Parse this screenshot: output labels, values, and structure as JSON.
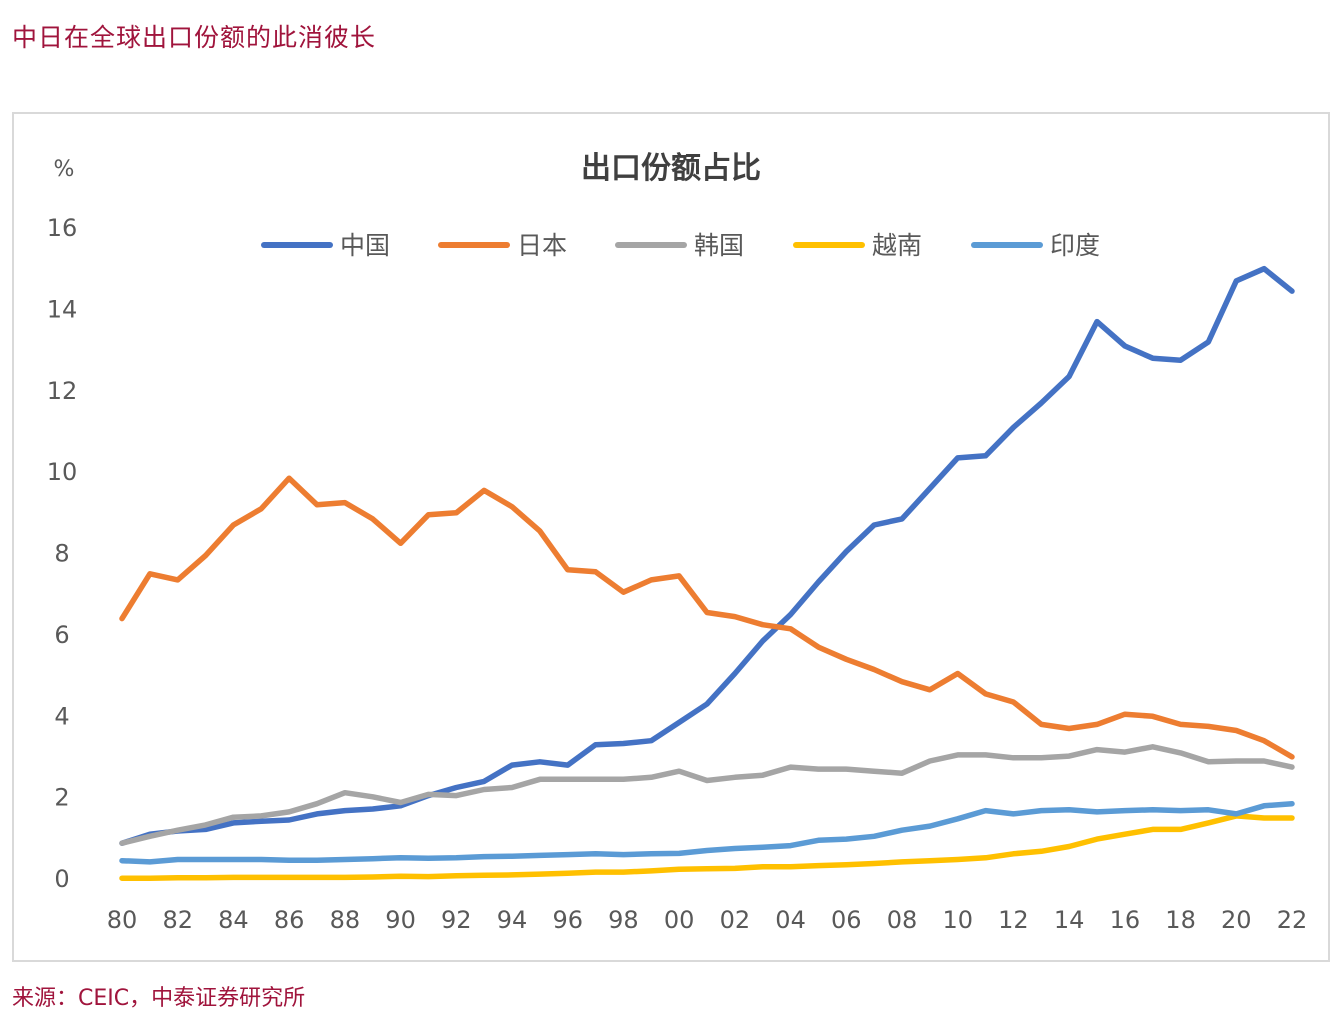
{
  "page_title": "中日在全球出口份额的此消彼长",
  "source": "来源：CEIC，中泰证券研究所",
  "colors": {
    "中国": "#4472c4",
    "日本": "#ed7d31",
    "韩国": "#a5a5a5",
    "越南": "#ffc000",
    "印度": "#5b9bd5"
  },
  "chart_data": {
    "type": "line",
    "title": "出口份额占比",
    "ylabel": "%",
    "xlabel": "",
    "ylim": [
      0,
      16
    ],
    "y_ticks": [
      "0",
      "2",
      "4",
      "6",
      "8",
      "10",
      "12",
      "14",
      "16"
    ],
    "x_tick_labels": [
      "80",
      "82",
      "84",
      "86",
      "88",
      "90",
      "92",
      "94",
      "96",
      "98",
      "00",
      "02",
      "04",
      "06",
      "08",
      "10",
      "12",
      "14",
      "16",
      "18",
      "20",
      "22"
    ],
    "grid": false,
    "legend_position": "top",
    "x": [
      "80",
      "81",
      "82",
      "83",
      "84",
      "85",
      "86",
      "87",
      "88",
      "89",
      "90",
      "91",
      "92",
      "93",
      "94",
      "95",
      "96",
      "97",
      "98",
      "99",
      "00",
      "01",
      "02",
      "03",
      "04",
      "05",
      "06",
      "07",
      "08",
      "09",
      "10",
      "11",
      "12",
      "13",
      "14",
      "15",
      "16",
      "17",
      "18",
      "19",
      "20",
      "21",
      "22"
    ],
    "series": [
      {
        "name": "中国",
        "values": [
          0.88,
          1.1,
          1.18,
          1.22,
          1.38,
          1.42,
          1.45,
          1.6,
          1.68,
          1.72,
          1.8,
          2.05,
          2.25,
          2.4,
          2.8,
          2.88,
          2.8,
          3.3,
          3.33,
          3.4,
          3.85,
          4.3,
          5.05,
          5.85,
          6.5,
          7.3,
          8.05,
          8.7,
          8.85,
          9.6,
          10.35,
          10.4,
          11.1,
          11.7,
          12.35,
          13.7,
          13.1,
          12.8,
          12.75,
          13.2,
          14.7,
          15.0,
          14.45
        ]
      },
      {
        "name": "日本",
        "values": [
          6.4,
          7.5,
          7.35,
          7.95,
          8.7,
          9.1,
          9.85,
          9.2,
          9.25,
          8.85,
          8.25,
          8.95,
          9.0,
          9.55,
          9.15,
          8.55,
          7.6,
          7.55,
          7.05,
          7.35,
          7.45,
          6.55,
          6.45,
          6.25,
          6.15,
          5.7,
          5.4,
          5.15,
          4.85,
          4.65,
          5.05,
          4.55,
          4.35,
          3.8,
          3.7,
          3.8,
          4.05,
          4.0,
          3.8,
          3.75,
          3.65,
          3.4,
          3.0
        ]
      },
      {
        "name": "韩国",
        "values": [
          0.88,
          1.05,
          1.2,
          1.33,
          1.52,
          1.55,
          1.65,
          1.85,
          2.12,
          2.02,
          1.88,
          2.08,
          2.05,
          2.2,
          2.25,
          2.45,
          2.45,
          2.45,
          2.45,
          2.5,
          2.65,
          2.42,
          2.5,
          2.55,
          2.75,
          2.7,
          2.7,
          2.65,
          2.6,
          2.9,
          3.05,
          3.05,
          2.98,
          2.98,
          3.02,
          3.18,
          3.12,
          3.25,
          3.1,
          2.88,
          2.9,
          2.9,
          2.75
        ]
      },
      {
        "name": "越南",
        "values": [
          0.02,
          0.02,
          0.03,
          0.03,
          0.04,
          0.04,
          0.04,
          0.04,
          0.04,
          0.05,
          0.07,
          0.06,
          0.08,
          0.09,
          0.1,
          0.12,
          0.14,
          0.17,
          0.17,
          0.2,
          0.24,
          0.25,
          0.26,
          0.3,
          0.3,
          0.33,
          0.35,
          0.38,
          0.42,
          0.45,
          0.48,
          0.52,
          0.62,
          0.68,
          0.8,
          0.98,
          1.1,
          1.22,
          1.22,
          1.38,
          1.55,
          1.5,
          1.5
        ]
      },
      {
        "name": "印度",
        "values": [
          0.45,
          0.42,
          0.48,
          0.48,
          0.48,
          0.48,
          0.46,
          0.46,
          0.48,
          0.5,
          0.52,
          0.51,
          0.52,
          0.55,
          0.56,
          0.58,
          0.6,
          0.62,
          0.6,
          0.62,
          0.63,
          0.7,
          0.75,
          0.78,
          0.82,
          0.95,
          0.98,
          1.05,
          1.2,
          1.3,
          1.48,
          1.68,
          1.6,
          1.68,
          1.7,
          1.65,
          1.68,
          1.7,
          1.68,
          1.7,
          1.6,
          1.8,
          1.85
        ]
      }
    ]
  }
}
